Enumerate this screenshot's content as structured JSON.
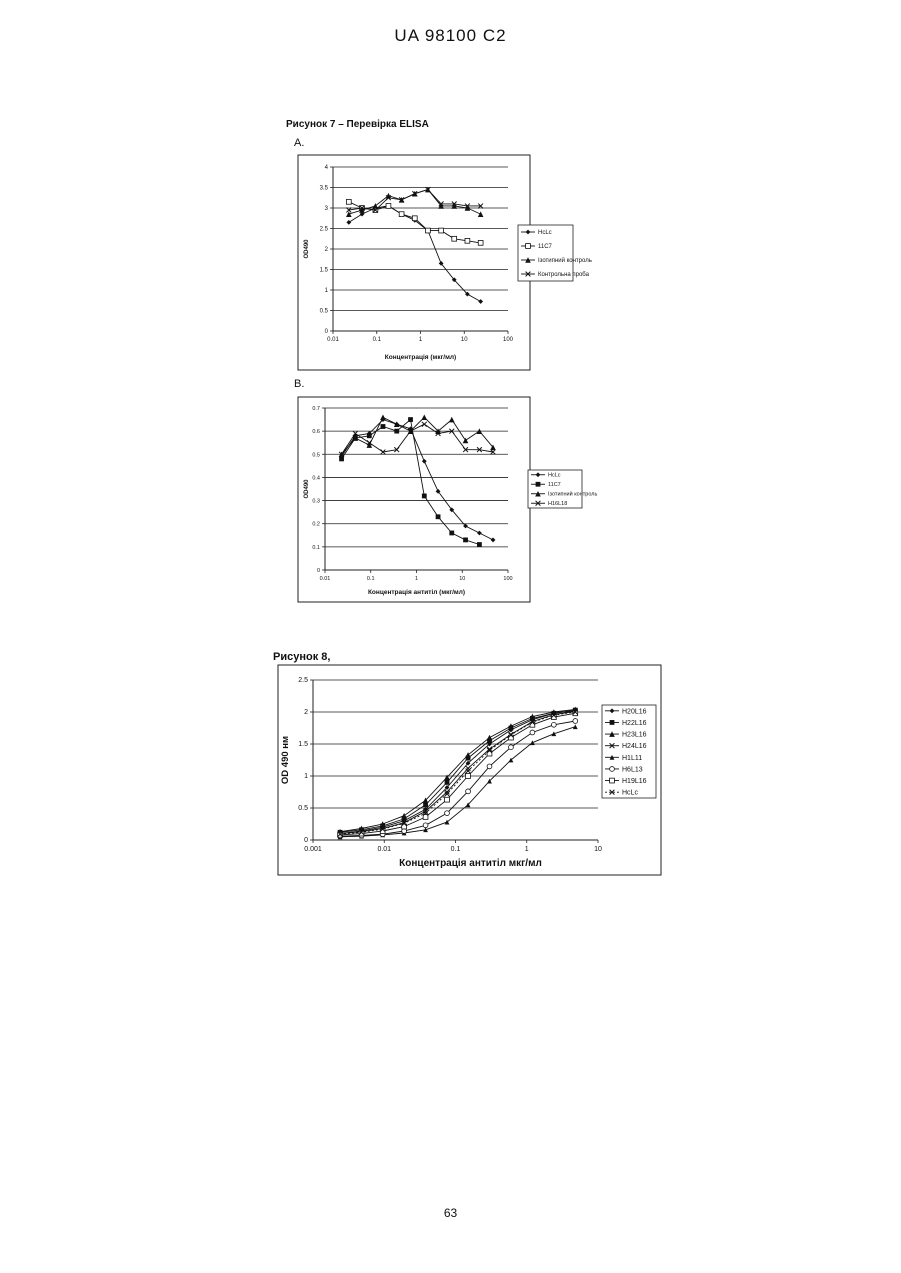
{
  "header": "UA   98100   C2",
  "figure7": {
    "caption": "Рисунок  7 –    Перевірка ELISA"
  },
  "figure8": {
    "caption": "Рисунок 8,"
  },
  "page_number": "63",
  "chart_data": [
    {
      "id": "A",
      "panel_label": "A.",
      "type": "line",
      "xscale": "log",
      "x_ticks": [
        "0.01",
        "0.1",
        "1",
        "10",
        "100"
      ],
      "y_ticks": [
        "0",
        "0.5",
        "1",
        "1.5",
        "2",
        "2.5",
        "3",
        "3.5",
        "4"
      ],
      "xlim": [
        0.01,
        100
      ],
      "ylim": [
        0,
        4
      ],
      "xlabel": "Концентрація (мкг/мл)",
      "ylabel": "OD490",
      "grid": "horizontal",
      "legend_position": "right",
      "series": [
        {
          "name": "HcLc",
          "marker": "diamond",
          "x": [
            0.023,
            0.046,
            0.093,
            0.185,
            0.37,
            0.74,
            1.48,
            2.96,
            5.9,
            11.8,
            23.7
          ],
          "y": [
            2.65,
            2.85,
            3.0,
            3.05,
            2.85,
            2.7,
            2.45,
            1.65,
            1.25,
            0.9,
            0.72
          ]
        },
        {
          "name": "11C7",
          "marker": "open-square",
          "x": [
            0.023,
            0.046,
            0.093,
            0.185,
            0.37,
            0.74,
            1.48,
            2.96,
            5.9,
            11.8,
            23.7
          ],
          "y": [
            3.15,
            3.0,
            2.95,
            3.05,
            2.85,
            2.75,
            2.45,
            2.45,
            2.25,
            2.2,
            2.15
          ]
        },
        {
          "name": "Ізотипний контроль",
          "marker": "triangle",
          "x": [
            0.023,
            0.046,
            0.093,
            0.185,
            0.37,
            0.74,
            1.48,
            2.96,
            5.9,
            11.8,
            23.7
          ],
          "y": [
            2.85,
            2.95,
            3.05,
            3.3,
            3.2,
            3.35,
            3.45,
            3.05,
            3.05,
            3.0,
            2.85
          ]
        },
        {
          "name": "Контрольна проба",
          "marker": "x",
          "x": [
            0.023,
            0.046,
            0.093,
            0.185,
            0.37,
            0.74,
            1.48,
            2.96,
            5.9,
            11.8,
            23.7
          ],
          "y": [
            2.95,
            3.0,
            2.95,
            3.25,
            3.2,
            3.35,
            3.45,
            3.1,
            3.1,
            3.05,
            3.05
          ]
        }
      ]
    },
    {
      "id": "B",
      "panel_label": "B.",
      "type": "line",
      "xscale": "log",
      "x_ticks": [
        "0.01",
        "0.1",
        "1",
        "10",
        "100"
      ],
      "y_ticks": [
        "0",
        "0.1",
        "0.2",
        "0.3",
        "0.4",
        "0.5",
        "0.6",
        "0.7"
      ],
      "xlim": [
        0.01,
        100
      ],
      "ylim": [
        0,
        0.7
      ],
      "xlabel": "Концентрація антитіл (мкг/мл)",
      "ylabel": "OD490",
      "grid": "horizontal",
      "legend_position": "right",
      "series": [
        {
          "name": "HcLc",
          "marker": "diamond",
          "x": [
            0.023,
            0.046,
            0.093,
            0.185,
            0.37,
            0.74,
            1.48,
            2.96,
            5.9,
            11.8,
            23.7,
            47
          ],
          "y": [
            0.49,
            0.58,
            0.59,
            0.65,
            0.63,
            0.61,
            0.47,
            0.34,
            0.26,
            0.19,
            0.16,
            0.13
          ]
        },
        {
          "name": "11C7",
          "marker": "filled-square",
          "x": [
            0.023,
            0.046,
            0.093,
            0.185,
            0.37,
            0.74,
            1.48,
            2.96,
            5.9,
            11.8,
            23.7
          ],
          "y": [
            0.48,
            0.57,
            0.58,
            0.62,
            0.6,
            0.65,
            0.32,
            0.23,
            0.16,
            0.13,
            0.11
          ]
        },
        {
          "name": "Ізотипний контроль",
          "marker": "triangle",
          "x": [
            0.023,
            0.046,
            0.093,
            0.185,
            0.37,
            0.74,
            1.48,
            2.96,
            5.9,
            11.8,
            23.7,
            47
          ],
          "y": [
            0.5,
            0.57,
            0.54,
            0.66,
            0.63,
            0.6,
            0.66,
            0.6,
            0.65,
            0.56,
            0.6,
            0.53
          ]
        },
        {
          "name": "H16L18",
          "marker": "x",
          "x": [
            0.023,
            0.046,
            0.093,
            0.185,
            0.37,
            0.74,
            1.48,
            2.96,
            5.9,
            11.8,
            23.7,
            47
          ],
          "y": [
            0.5,
            0.59,
            0.55,
            0.51,
            0.52,
            0.6,
            0.63,
            0.59,
            0.6,
            0.52,
            0.52,
            0.51
          ]
        }
      ]
    },
    {
      "id": "fig8",
      "type": "line",
      "xscale": "log",
      "x_ticks": [
        "0.001",
        "0.01",
        "0.1",
        "1",
        "10"
      ],
      "y_ticks": [
        "0",
        "0.5",
        "1",
        "1.5",
        "2",
        "2.5"
      ],
      "xlim": [
        0.001,
        10
      ],
      "ylim": [
        0,
        2.5
      ],
      "xlabel": "Концентрація антитіл мкг/мл",
      "ylabel": "OD 490 нм",
      "grid": "horizontal",
      "legend_position": "right",
      "series": [
        {
          "name": "H20L16",
          "marker": "diamond",
          "x": [
            0.0024,
            0.0048,
            0.0095,
            0.019,
            0.038,
            0.076,
            0.15,
            0.3,
            0.6,
            1.2,
            2.4,
            4.8
          ],
          "y": [
            0.1,
            0.14,
            0.2,
            0.3,
            0.48,
            0.82,
            1.2,
            1.5,
            1.72,
            1.88,
            1.98,
            2.02
          ]
        },
        {
          "name": "H22L16",
          "marker": "filled-square",
          "x": [
            0.0024,
            0.0048,
            0.0095,
            0.019,
            0.038,
            0.076,
            0.15,
            0.3,
            0.6,
            1.2,
            2.4,
            4.8
          ],
          "y": [
            0.12,
            0.16,
            0.22,
            0.33,
            0.55,
            0.9,
            1.28,
            1.55,
            1.75,
            1.9,
            1.98,
            2.03
          ]
        },
        {
          "name": "H23L16",
          "marker": "triangle",
          "x": [
            0.0024,
            0.0048,
            0.0095,
            0.019,
            0.038,
            0.076,
            0.15,
            0.3,
            0.6,
            1.2,
            2.4,
            4.8
          ],
          "y": [
            0.13,
            0.18,
            0.25,
            0.38,
            0.62,
            0.98,
            1.33,
            1.6,
            1.78,
            1.93,
            2.0,
            2.04
          ]
        },
        {
          "name": "H24L16",
          "marker": "x",
          "x": [
            0.0024,
            0.0048,
            0.0095,
            0.019,
            0.038,
            0.076,
            0.15,
            0.3,
            0.6,
            1.2,
            2.4,
            4.8
          ],
          "y": [
            0.1,
            0.13,
            0.18,
            0.27,
            0.45,
            0.75,
            1.12,
            1.42,
            1.65,
            1.85,
            1.96,
            2.01
          ]
        },
        {
          "name": "H1L11",
          "marker": "triangle-small",
          "x": [
            0.0024,
            0.0048,
            0.0095,
            0.019,
            0.038,
            0.076,
            0.15,
            0.3,
            0.6,
            1.2,
            2.4,
            4.8
          ],
          "y": [
            0.05,
            0.06,
            0.08,
            0.11,
            0.16,
            0.28,
            0.55,
            0.92,
            1.25,
            1.52,
            1.66,
            1.77
          ]
        },
        {
          "name": "H6L13",
          "marker": "open-circle",
          "x": [
            0.0024,
            0.0048,
            0.0095,
            0.019,
            0.038,
            0.076,
            0.15,
            0.3,
            0.6,
            1.2,
            2.4,
            4.8
          ],
          "y": [
            0.06,
            0.07,
            0.09,
            0.14,
            0.23,
            0.42,
            0.76,
            1.15,
            1.45,
            1.68,
            1.8,
            1.86
          ]
        },
        {
          "name": "H19L16",
          "marker": "open-square",
          "x": [
            0.0024,
            0.0048,
            0.0095,
            0.019,
            0.038,
            0.076,
            0.15,
            0.3,
            0.6,
            1.2,
            2.4,
            4.8
          ],
          "y": [
            0.08,
            0.1,
            0.14,
            0.21,
            0.36,
            0.63,
            1.0,
            1.35,
            1.6,
            1.8,
            1.92,
            1.98
          ]
        },
        {
          "name": "HcLc",
          "marker": "x",
          "dashed": true,
          "x": [
            0.0024,
            0.0048,
            0.0095,
            0.019,
            0.038,
            0.076,
            0.15,
            0.3,
            0.6,
            1.2,
            2.4,
            4.8
          ],
          "y": [
            0.09,
            0.12,
            0.17,
            0.26,
            0.42,
            0.72,
            1.08,
            1.4,
            1.64,
            1.84,
            1.95,
            2.0
          ]
        }
      ]
    }
  ]
}
